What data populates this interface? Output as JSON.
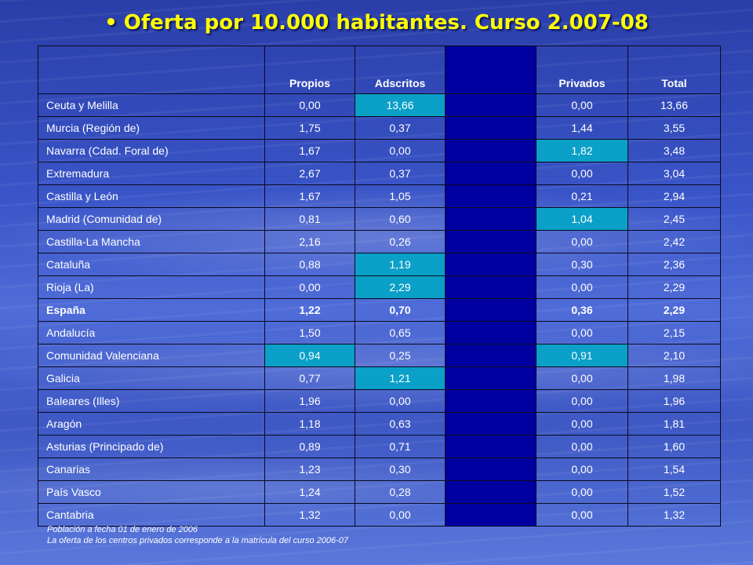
{
  "title": "Oferta por 10.000 habitantes. Curso 2.007-08",
  "colors": {
    "title": "#ffff00",
    "highlight": "#0aa0c8",
    "dark_column": "#0000a0"
  },
  "headers": [
    "",
    "Propios",
    "Adscritos",
    "",
    "Privados",
    "Total"
  ],
  "rows": [
    {
      "region": "Ceuta y Melilla",
      "propios": "0,00",
      "adscritos": "13,66",
      "privados": "0,00",
      "total": "13,66",
      "bold": false,
      "hl": [
        "adscritos"
      ]
    },
    {
      "region": "Murcia (Región de)",
      "propios": "1,75",
      "adscritos": "0,37",
      "privados": "1,44",
      "total": "3,55",
      "bold": false,
      "hl": []
    },
    {
      "region": "Navarra (Cdad. Foral de)",
      "propios": "1,67",
      "adscritos": "0,00",
      "privados": "1,82",
      "total": "3,48",
      "bold": false,
      "hl": [
        "privados"
      ]
    },
    {
      "region": "Extremadura",
      "propios": "2,67",
      "adscritos": "0,37",
      "privados": "0,00",
      "total": "3,04",
      "bold": false,
      "hl": []
    },
    {
      "region": "Castilla y León",
      "propios": "1,67",
      "adscritos": "1,05",
      "privados": "0,21",
      "total": "2,94",
      "bold": false,
      "hl": []
    },
    {
      "region": "Madrid (Comunidad de)",
      "propios": "0,81",
      "adscritos": "0,60",
      "privados": "1,04",
      "total": "2,45",
      "bold": false,
      "hl": [
        "privados"
      ]
    },
    {
      "region": "Castilla-La Mancha",
      "propios": "2,16",
      "adscritos": "0,26",
      "privados": "0,00",
      "total": "2,42",
      "bold": false,
      "hl": []
    },
    {
      "region": "Cataluña",
      "propios": "0,88",
      "adscritos": "1,19",
      "privados": "0,30",
      "total": "2,36",
      "bold": false,
      "hl": [
        "adscritos"
      ]
    },
    {
      "region": "Rioja (La)",
      "propios": "0,00",
      "adscritos": "2,29",
      "privados": "0,00",
      "total": "2,29",
      "bold": false,
      "hl": [
        "adscritos"
      ]
    },
    {
      "region": "España",
      "propios": "1,22",
      "adscritos": "0,70",
      "privados": "0,36",
      "total": "2,29",
      "bold": true,
      "hl": []
    },
    {
      "region": "Andalucía",
      "propios": "1,50",
      "adscritos": "0,65",
      "privados": "0,00",
      "total": "2,15",
      "bold": false,
      "hl": []
    },
    {
      "region": "Comunidad Valenciana",
      "propios": "0,94",
      "adscritos": "0,25",
      "privados": "0,91",
      "total": "2,10",
      "bold": false,
      "hl": [
        "propios",
        "privados"
      ]
    },
    {
      "region": "Galicia",
      "propios": "0,77",
      "adscritos": "1,21",
      "privados": "0,00",
      "total": "1,98",
      "bold": false,
      "hl": [
        "adscritos"
      ]
    },
    {
      "region": "Baleares (Illes)",
      "propios": "1,96",
      "adscritos": "0,00",
      "privados": "0,00",
      "total": "1,96",
      "bold": false,
      "hl": []
    },
    {
      "region": "Aragón",
      "propios": "1,18",
      "adscritos": "0,63",
      "privados": "0,00",
      "total": "1,81",
      "bold": false,
      "hl": []
    },
    {
      "region": "Asturias (Principado de)",
      "propios": "0,89",
      "adscritos": "0,71",
      "privados": "0,00",
      "total": "1,60",
      "bold": false,
      "hl": []
    },
    {
      "region": "Canarias",
      "propios": "1,23",
      "adscritos": "0,30",
      "privados": "0,00",
      "total": "1,54",
      "bold": false,
      "hl": []
    },
    {
      "region": "País Vasco",
      "propios": "1,24",
      "adscritos": "0,28",
      "privados": "0,00",
      "total": "1,52",
      "bold": false,
      "hl": []
    },
    {
      "region": "Cantabria",
      "propios": "1,32",
      "adscritos": "0,00",
      "privados": "0,00",
      "total": "1,32",
      "bold": false,
      "hl": []
    }
  ],
  "notes": [
    "Población a fecha 01 de enero de 2006",
    "La oferta de los centros privados corresponde a la matrícula del curso 2006-07"
  ]
}
